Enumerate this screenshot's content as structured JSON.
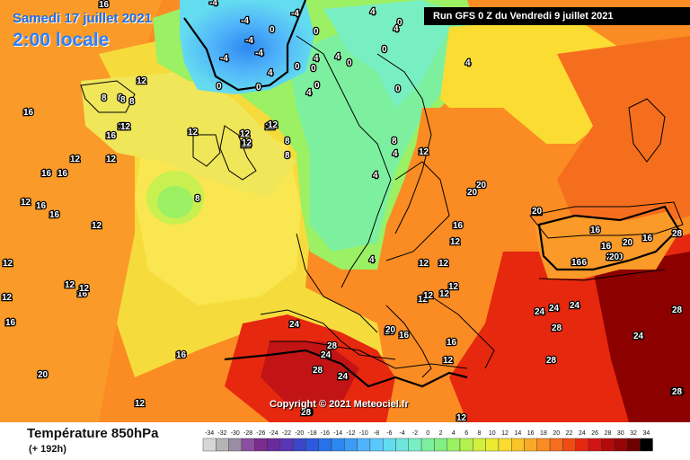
{
  "header": {
    "date": "Samedi 17 juillet 2021",
    "time": "2:00 locale",
    "run": "Run GFS 0 Z du Vendredi 9 juillet 2021"
  },
  "footer": {
    "parameter": "Température 850hPa",
    "lead": "(+ 192h)",
    "copyright": "Copyright © 2021 Meteociel.fr"
  },
  "legend": {
    "values": [
      "-34",
      "-32",
      "-30",
      "-28",
      "-26",
      "-24",
      "-22",
      "-20",
      "-18",
      "-16",
      "-14",
      "-12",
      "-10",
      "-8",
      "-6",
      "-4",
      "-2",
      "0",
      "2",
      "4",
      "6",
      "8",
      "10",
      "12",
      "14",
      "16",
      "18",
      "20",
      "22",
      "24",
      "26",
      "28",
      "30",
      "32",
      "34"
    ],
    "colors": [
      "#d7d7d7",
      "#b4b4b4",
      "#9b8ca5",
      "#8c4ea0",
      "#7a2d8c",
      "#6a2a9e",
      "#5a35b4",
      "#3c46c8",
      "#2d5adc",
      "#2871e6",
      "#2d87f0",
      "#3c9bf5",
      "#50b4fa",
      "#5ac8fa",
      "#64dcf0",
      "#6ee6dc",
      "#78eec3",
      "#7df0a0",
      "#82f082",
      "#9bf064",
      "#b4f050",
      "#d2f03c",
      "#ebeb32",
      "#fadc32",
      "#fac328",
      "#faaa28",
      "#fa8c23",
      "#f56e1e",
      "#f04b14",
      "#e6280f",
      "#d21414",
      "#b40a0a",
      "#960505",
      "#6e0000",
      "#000000"
    ]
  },
  "labels": [
    {
      "t": "16"
    },
    {
      "t": "-4"
    },
    {
      "t": "-4"
    },
    {
      "t": "-4"
    },
    {
      "t": "0"
    },
    {
      "t": "-4"
    },
    {
      "t": "-4"
    },
    {
      "t": "0"
    },
    {
      "t": "-4"
    },
    {
      "t": "4"
    },
    {
      "t": "0"
    },
    {
      "t": "0"
    },
    {
      "t": "0"
    },
    {
      "t": "4"
    },
    {
      "t": "0"
    },
    {
      "t": "4"
    },
    {
      "t": "0"
    },
    {
      "t": "4"
    },
    {
      "t": "-4"
    },
    {
      "t": "0"
    },
    {
      "t": "4"
    },
    {
      "t": "4"
    },
    {
      "t": "0"
    },
    {
      "t": "0"
    },
    {
      "t": "0"
    },
    {
      "t": "4"
    },
    {
      "t": "8"
    },
    {
      "t": "12"
    },
    {
      "t": "8"
    },
    {
      "t": "8"
    },
    {
      "t": "8"
    },
    {
      "t": "12"
    },
    {
      "t": "16"
    },
    {
      "t": "12"
    },
    {
      "t": "12"
    },
    {
      "t": "12"
    },
    {
      "t": "12"
    },
    {
      "t": "12"
    },
    {
      "t": "8"
    },
    {
      "t": "12"
    },
    {
      "t": "8"
    },
    {
      "t": "12"
    },
    {
      "t": "16"
    },
    {
      "t": "16"
    },
    {
      "t": "12"
    },
    {
      "t": "12"
    },
    {
      "t": "16"
    },
    {
      "t": "12"
    },
    {
      "t": "8"
    },
    {
      "t": "16"
    },
    {
      "t": "16"
    },
    {
      "t": "16"
    },
    {
      "t": "12"
    },
    {
      "t": "4"
    },
    {
      "t": "8"
    },
    {
      "t": "4"
    },
    {
      "t": "12"
    },
    {
      "t": "16"
    },
    {
      "t": "12"
    },
    {
      "t": "12"
    },
    {
      "t": "12"
    },
    {
      "t": "4"
    },
    {
      "t": "16"
    },
    {
      "t": "12"
    },
    {
      "t": "16"
    },
    {
      "t": "12"
    },
    {
      "t": "12"
    },
    {
      "t": "20"
    },
    {
      "t": "12"
    },
    {
      "t": "12"
    },
    {
      "t": "16"
    },
    {
      "t": "12"
    },
    {
      "t": "20"
    },
    {
      "t": "20"
    },
    {
      "t": "20"
    },
    {
      "t": "20"
    },
    {
      "t": "20"
    },
    {
      "t": "20"
    },
    {
      "t": "20"
    },
    {
      "t": "16"
    },
    {
      "t": "16"
    },
    {
      "t": "16"
    },
    {
      "t": "16"
    },
    {
      "t": "28"
    },
    {
      "t": "20"
    },
    {
      "t": "16"
    },
    {
      "t": "20"
    },
    {
      "t": "24"
    },
    {
      "t": "24"
    },
    {
      "t": "24"
    },
    {
      "t": "28"
    },
    {
      "t": "24"
    },
    {
      "t": "28"
    },
    {
      "t": "28"
    },
    {
      "t": "24"
    },
    {
      "t": "28"
    },
    {
      "t": "28"
    },
    {
      "t": "24"
    },
    {
      "t": "20"
    },
    {
      "t": "16"
    },
    {
      "t": "12"
    },
    {
      "t": "12"
    },
    {
      "t": "16"
    },
    {
      "t": "12"
    },
    {
      "t": "12"
    },
    {
      "t": "20"
    },
    {
      "t": "12"
    },
    {
      "t": "28"
    },
    {
      "t": "24"
    },
    {
      "t": "28"
    },
    {
      "t": "24"
    },
    {
      "t": "28"
    },
    {
      "t": "24"
    },
    {
      "t": "28"
    },
    {
      "t": "12"
    },
    {
      "t": "16"
    },
    {
      "t": "20"
    }
  ]
}
